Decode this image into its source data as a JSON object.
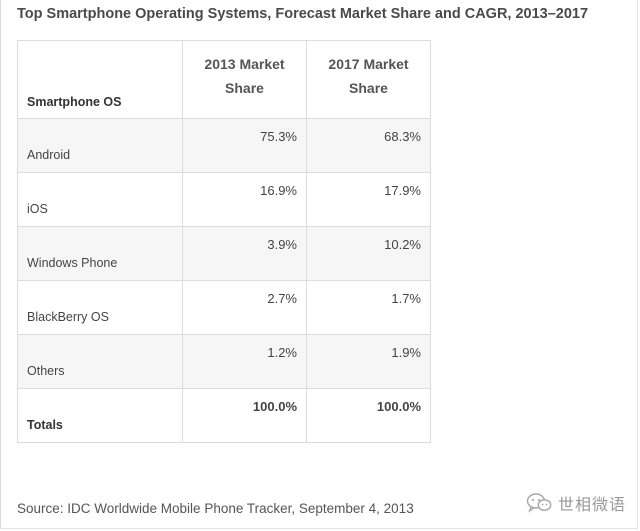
{
  "title": "Top Smartphone Operating Systems, Forecast Market Share and CAGR, 2013–2017",
  "source": "Source: IDC Worldwide Mobile Phone Tracker, September 4, 2013",
  "watermark": {
    "text": "世相微语",
    "icon": "wechat-icon"
  },
  "chart_data": {
    "type": "table",
    "title": "Top Smartphone Operating Systems, Forecast Market Share and CAGR, 2013–2017",
    "columns": [
      "Smartphone OS",
      "2013 Market Share",
      "2017 Market Share"
    ],
    "rows": [
      {
        "os": "Android",
        "share_2013": "75.3%",
        "share_2017": "68.3%"
      },
      {
        "os": "iOS",
        "share_2013": "16.9%",
        "share_2017": "17.9%"
      },
      {
        "os": "Windows Phone",
        "share_2013": "3.9%",
        "share_2017": "10.2%"
      },
      {
        "os": "BlackBerry OS",
        "share_2013": "2.7%",
        "share_2017": "1.7%"
      },
      {
        "os": "Others",
        "share_2013": "1.2%",
        "share_2017": "1.9%"
      }
    ],
    "totals": {
      "label": "Totals",
      "share_2013": "100.0%",
      "share_2017": "100.0%"
    }
  }
}
